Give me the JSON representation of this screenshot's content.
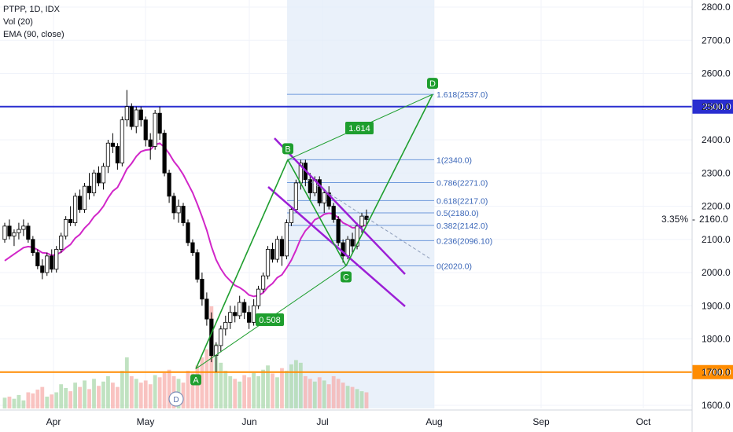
{
  "header": {
    "symbol_line": "PTPP, 1D, IDX",
    "vol_line": "Vol (20)",
    "ema_line": "EMA (90, close)"
  },
  "chart_data": {
    "type": "candlestick",
    "y_axis": {
      "ticks": [
        "2800.0",
        "2700.0",
        "2600.0",
        "2500.0",
        "2400.0",
        "2300.0",
        "2200.0",
        "2100.0",
        "2000.0",
        "1900.0",
        "1800.0",
        "1700.0",
        "1600.0"
      ],
      "range": [
        1590,
        2810
      ]
    },
    "x_axis": {
      "labels": [
        "Apr",
        "May",
        "Jun",
        "Jul",
        "Aug",
        "Sep",
        "Oct"
      ]
    },
    "horizontal_lines": [
      {
        "price": 2500,
        "label": "2500.0",
        "color": "#2a2ed0"
      },
      {
        "price": 1700,
        "label": "1700.0",
        "color": "#ff8c00"
      }
    ],
    "current_price": {
      "percent_label": "3.35%",
      "price_label": "2160.0",
      "price": 2160
    },
    "fibonacci": [
      {
        "label": "1.618(2537.0)",
        "price": 2537
      },
      {
        "label": "1(2340.0)",
        "price": 2340
      },
      {
        "label": "0.786(2271.0)",
        "price": 2271
      },
      {
        "label": "0.618(2217.0)",
        "price": 2217
      },
      {
        "label": "0.5(2180.0)",
        "price": 2180
      },
      {
        "label": "0.382(2142.0)",
        "price": 2142
      },
      {
        "label": "0.236(2096.10)",
        "price": 2096.1
      },
      {
        "label": "0(2020.0)",
        "price": 2020
      }
    ],
    "abcd_pattern": {
      "points": [
        {
          "name": "A",
          "price": 1710
        },
        {
          "name": "B",
          "price": 2340
        },
        {
          "name": "C",
          "price": 2020
        },
        {
          "name": "D",
          "price": 2537
        }
      ],
      "ratios": [
        "0.508",
        "1.614"
      ]
    },
    "dividend_marker": "D",
    "candles": [
      [
        2100,
        2150,
        2090,
        2140
      ],
      [
        2140,
        2160,
        2100,
        2110
      ],
      [
        2110,
        2130,
        2080,
        2120
      ],
      [
        2120,
        2150,
        2100,
        2130
      ],
      [
        2130,
        2160,
        2110,
        2140
      ],
      [
        2140,
        2150,
        2090,
        2100
      ],
      [
        2100,
        2110,
        2050,
        2060
      ],
      [
        2060,
        2070,
        2010,
        2020
      ],
      [
        2020,
        2040,
        1980,
        2000
      ],
      [
        2000,
        2060,
        1990,
        2050
      ],
      [
        2050,
        2070,
        2000,
        2010
      ],
      [
        2010,
        2080,
        2000,
        2070
      ],
      [
        2070,
        2120,
        2060,
        2110
      ],
      [
        2110,
        2170,
        2100,
        2160
      ],
      [
        2160,
        2200,
        2140,
        2150
      ],
      [
        2150,
        2240,
        2140,
        2230
      ],
      [
        2230,
        2250,
        2180,
        2190
      ],
      [
        2190,
        2270,
        2180,
        2260
      ],
      [
        2260,
        2300,
        2220,
        2240
      ],
      [
        2240,
        2310,
        2230,
        2300
      ],
      [
        2300,
        2320,
        2260,
        2270
      ],
      [
        2270,
        2330,
        2250,
        2320
      ],
      [
        2320,
        2400,
        2300,
        2390
      ],
      [
        2390,
        2420,
        2360,
        2380
      ],
      [
        2380,
        2390,
        2310,
        2330
      ],
      [
        2330,
        2470,
        2320,
        2460
      ],
      [
        2460,
        2550,
        2440,
        2500
      ],
      [
        2500,
        2510,
        2430,
        2440
      ],
      [
        2440,
        2500,
        2420,
        2490
      ],
      [
        2490,
        2500,
        2440,
        2460
      ],
      [
        2460,
        2470,
        2380,
        2400
      ],
      [
        2400,
        2420,
        2340,
        2380
      ],
      [
        2380,
        2490,
        2370,
        2480
      ],
      [
        2480,
        2500,
        2400,
        2420
      ],
      [
        2420,
        2430,
        2290,
        2300
      ],
      [
        2300,
        2310,
        2210,
        2230
      ],
      [
        2230,
        2240,
        2160,
        2180
      ],
      [
        2180,
        2220,
        2150,
        2200
      ],
      [
        2200,
        2210,
        2140,
        2150
      ],
      [
        2150,
        2160,
        2080,
        2090
      ],
      [
        2090,
        2100,
        2050,
        2060
      ],
      [
        2060,
        2070,
        1970,
        1980
      ],
      [
        1980,
        2000,
        1900,
        1920
      ],
      [
        1920,
        1940,
        1840,
        1860
      ],
      [
        1860,
        1880,
        1730,
        1750
      ],
      [
        1750,
        1790,
        1700,
        1780
      ],
      [
        1780,
        1840,
        1760,
        1830
      ],
      [
        1830,
        1870,
        1810,
        1850
      ],
      [
        1850,
        1900,
        1830,
        1880
      ],
      [
        1880,
        1900,
        1850,
        1870
      ],
      [
        1870,
        1930,
        1860,
        1910
      ],
      [
        1910,
        1920,
        1860,
        1880
      ],
      [
        1880,
        1900,
        1830,
        1850
      ],
      [
        1850,
        1920,
        1840,
        1900
      ],
      [
        1900,
        1960,
        1890,
        1950
      ],
      [
        1950,
        2000,
        1940,
        1990
      ],
      [
        1990,
        2080,
        1980,
        2070
      ],
      [
        2070,
        2090,
        2030,
        2040
      ],
      [
        2040,
        2110,
        2030,
        2100
      ],
      [
        2100,
        2110,
        2020,
        2050
      ],
      [
        2050,
        2160,
        2040,
        2150
      ],
      [
        2150,
        2200,
        2140,
        2190
      ],
      [
        2190,
        2280,
        2180,
        2270
      ],
      [
        2270,
        2340,
        2250,
        2330
      ],
      [
        2330,
        2340,
        2260,
        2280
      ],
      [
        2280,
        2300,
        2220,
        2240
      ],
      [
        2240,
        2290,
        2230,
        2280
      ],
      [
        2280,
        2290,
        2200,
        2210
      ],
      [
        2210,
        2250,
        2180,
        2240
      ],
      [
        2240,
        2260,
        2190,
        2200
      ],
      [
        2200,
        2210,
        2150,
        2160
      ],
      [
        2160,
        2170,
        2080,
        2090
      ],
      [
        2090,
        2100,
        2030,
        2050
      ],
      [
        2050,
        2110,
        2040,
        2100
      ],
      [
        2100,
        2120,
        2060,
        2080
      ],
      [
        2080,
        2150,
        2070,
        2140
      ],
      [
        2140,
        2180,
        2120,
        2170
      ],
      [
        2170,
        2190,
        2140,
        2160
      ]
    ],
    "volumes": [
      20,
      22,
      18,
      25,
      15,
      30,
      28,
      35,
      40,
      22,
      26,
      30,
      45,
      38,
      32,
      48,
      40,
      52,
      36,
      55,
      42,
      50,
      60,
      48,
      40,
      70,
      95,
      60,
      55,
      48,
      52,
      45,
      62,
      58,
      66,
      72,
      60,
      55,
      48,
      70,
      65,
      80,
      95,
      110,
      190,
      120,
      85,
      70,
      60,
      55,
      50,
      62,
      58,
      66,
      60,
      72,
      80,
      65,
      58,
      75,
      70,
      82,
      90,
      85,
      60,
      55,
      50,
      58,
      52,
      45,
      60,
      55,
      48,
      42,
      40,
      36,
      32,
      30
    ]
  }
}
